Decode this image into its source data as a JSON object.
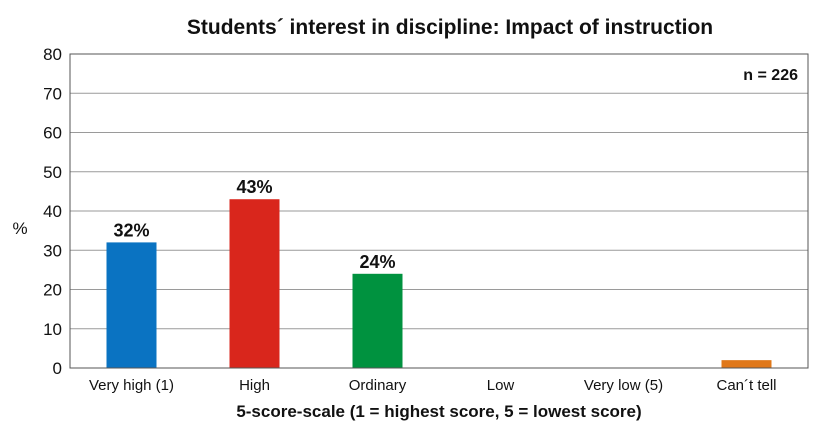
{
  "chart_data": {
    "type": "bar",
    "title": "Students´ interest in discipline: Impact of instruction",
    "annotation": "n = 226",
    "xlabel": "5-score-scale (1 = highest score, 5 = lowest score)",
    "ylabel": "%",
    "ylim": [
      0,
      80
    ],
    "yticks": [
      "0",
      "10",
      "20",
      "30",
      "40",
      "50",
      "60",
      "70",
      "80"
    ],
    "grid": true,
    "categories": [
      "Very high (1)",
      "High",
      "Ordinary",
      "Low",
      "Very low (5)",
      "Can´t tell"
    ],
    "values": [
      32,
      43,
      24,
      0,
      0,
      2
    ],
    "data_labels": [
      "32%",
      "43%",
      "24%",
      "",
      "",
      ""
    ],
    "colors": [
      "#0a73c2",
      "#d9261c",
      "#00923f",
      "#888888",
      "#888888",
      "#e0781a"
    ]
  }
}
